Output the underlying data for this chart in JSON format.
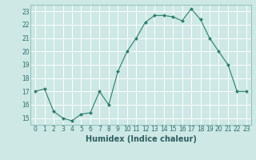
{
  "x": [
    0,
    1,
    2,
    3,
    4,
    5,
    6,
    7,
    8,
    9,
    10,
    11,
    12,
    13,
    14,
    15,
    16,
    17,
    18,
    19,
    20,
    21,
    22,
    23
  ],
  "y": [
    17,
    17.2,
    15.5,
    15,
    14.8,
    15.3,
    15.4,
    17,
    16,
    18.5,
    20,
    21,
    22.2,
    22.7,
    22.7,
    22.6,
    22.3,
    23.2,
    22.4,
    21,
    20,
    19,
    17,
    17
  ],
  "line_color": "#2e7d6e",
  "marker_color": "#2e7d6e",
  "bg_color": "#cde8e5",
  "grid_color": "#ffffff",
  "grid_minor_color": "#e8f4f3",
  "xlabel": "Humidex (Indice chaleur)",
  "ylabel": "",
  "xlim": [
    -0.5,
    23.5
  ],
  "ylim": [
    14.5,
    23.5
  ],
  "yticks": [
    15,
    16,
    17,
    18,
    19,
    20,
    21,
    22,
    23
  ],
  "xticks": [
    0,
    1,
    2,
    3,
    4,
    5,
    6,
    7,
    8,
    9,
    10,
    11,
    12,
    13,
    14,
    15,
    16,
    17,
    18,
    19,
    20,
    21,
    22,
    23
  ],
  "label_fontsize": 7,
  "tick_fontsize": 5.5
}
